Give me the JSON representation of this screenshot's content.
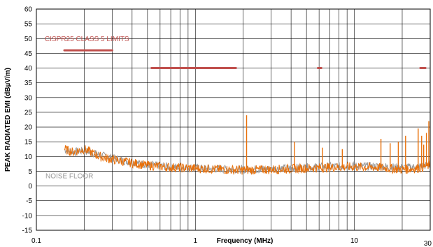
{
  "chart_data": {
    "type": "line",
    "xlabel": "Frequency (MHz)",
    "ylabel": "PEAK RADIATED EMI (dBµV/m)",
    "x_scale": "log",
    "xlim": [
      0.1,
      30
    ],
    "ylim": [
      -15,
      60
    ],
    "x_tick_labels": [
      "0.1",
      "1",
      "10",
      "30"
    ],
    "y_ticks": [
      -15,
      -10,
      -5,
      0,
      5,
      10,
      15,
      20,
      25,
      30,
      35,
      40,
      45,
      50,
      55,
      60
    ],
    "grid": true,
    "colors": {
      "limits": "#c0504d",
      "measured": "#e8700a",
      "noise_floor": "#999999"
    },
    "annotations": [
      {
        "text": "CISPR25 CLASS 5 LIMITS",
        "color": "#c0504d"
      },
      {
        "text": "NOISE FLOOR",
        "color": "#999999"
      }
    ],
    "series": [
      {
        "kind": "limit",
        "segments": [
          {
            "x": [
              0.15,
              0.3
            ],
            "y": [
              46,
              46
            ]
          },
          {
            "x": [
              0.53,
              1.8
            ],
            "y": [
              40,
              40
            ]
          },
          {
            "x": [
              5.9,
              6.2
            ],
            "y": [
              40,
              40
            ]
          },
          {
            "x": [
              26,
              28
            ],
            "y": [
              40,
              40
            ]
          }
        ]
      },
      {
        "kind": "noise_floor",
        "x": [
          0.15,
          0.17,
          0.2,
          0.25,
          0.3,
          0.4,
          0.5,
          0.7,
          1.0,
          1.5,
          2.0,
          3.0,
          5.0,
          7.0,
          10.0,
          15.0,
          20.0,
          25.0,
          30.0
        ],
        "y": [
          12.5,
          11.5,
          12.0,
          10.5,
          9.5,
          8.0,
          7.2,
          6.5,
          6.0,
          5.8,
          5.6,
          5.8,
          6.3,
          6.6,
          6.8,
          6.6,
          6.2,
          6.5,
          7.2
        ]
      },
      {
        "kind": "measured",
        "x": [
          0.15,
          0.17,
          0.2,
          0.25,
          0.3,
          0.4,
          0.5,
          0.7,
          1.0,
          1.5,
          2.0,
          3.0,
          5.0,
          7.0,
          10.0,
          15.0,
          20.0,
          25.0,
          30.0
        ],
        "y": [
          12.5,
          11.5,
          12.5,
          10.0,
          9.0,
          7.8,
          7.0,
          6.3,
          6.0,
          5.6,
          5.4,
          5.6,
          6.0,
          6.3,
          6.5,
          6.2,
          5.6,
          6.0,
          7.0
        ],
        "spikes": [
          {
            "x": 2.1,
            "y": 24
          },
          {
            "x": 4.2,
            "y": 15
          },
          {
            "x": 6.3,
            "y": 13
          },
          {
            "x": 8.4,
            "y": 12.5
          },
          {
            "x": 14.7,
            "y": 16
          },
          {
            "x": 16.8,
            "y": 14.5
          },
          {
            "x": 18.9,
            "y": 15
          },
          {
            "x": 21.0,
            "y": 17
          },
          {
            "x": 25.2,
            "y": 19.5
          },
          {
            "x": 26.5,
            "y": 17
          },
          {
            "x": 27.3,
            "y": 14
          },
          {
            "x": 28.4,
            "y": 18
          },
          {
            "x": 29.4,
            "y": 22
          }
        ]
      }
    ]
  }
}
